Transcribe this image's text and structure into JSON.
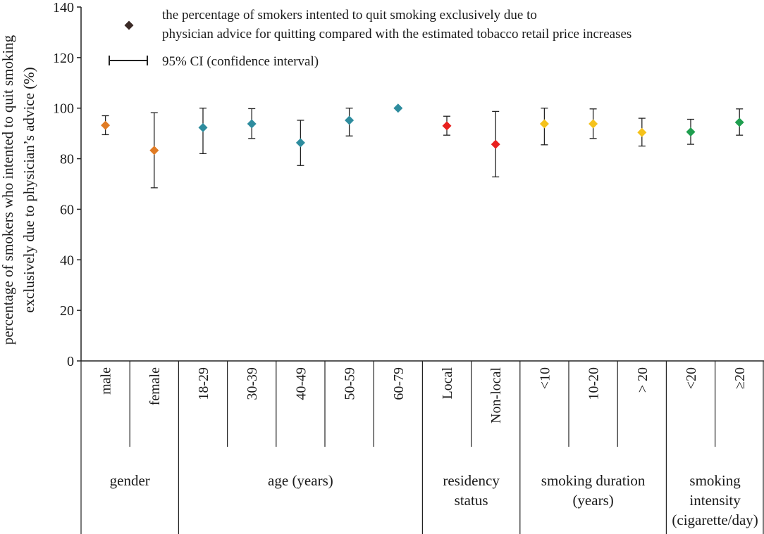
{
  "chart_data": {
    "type": "scatter",
    "ylabel_lines": [
      "percentage of smokers who intented to quit smoking",
      "exclusively due to physician’s advice (%)"
    ],
    "xlabel": "",
    "ylim": [
      0,
      140
    ],
    "yticks": [
      "0",
      "20",
      "40",
      "60",
      "80",
      "100",
      "120",
      "140"
    ],
    "legend": {
      "marker_label_lines": [
        "the percentage of smokers intented to quit smoking exclusively due to",
        "physician advice for quitting compared with the estimated tobacco retail price increases"
      ],
      "ci_label": "95% CI (confidence interval)",
      "marker_color": "#3a2a26"
    },
    "groups": [
      {
        "name_lines": [
          "gender"
        ],
        "span": 2
      },
      {
        "name_lines": [
          "age (years)"
        ],
        "span": 5
      },
      {
        "name_lines": [
          "residency",
          "status"
        ],
        "span": 2
      },
      {
        "name_lines": [
          "smoking duration",
          "(years)"
        ],
        "span": 3
      },
      {
        "name_lines": [
          "smoking",
          "intensity",
          "(cigarette/day)"
        ],
        "span": 2
      }
    ],
    "points": [
      {
        "category": "male",
        "value": 93.2,
        "ci": [
          89.5,
          97.0
        ],
        "color": "#e07b24"
      },
      {
        "category": "female",
        "value": 83.3,
        "ci": [
          68.5,
          98.2
        ],
        "color": "#e07b24"
      },
      {
        "category": "18-29",
        "value": 92.3,
        "ci": [
          82.0,
          100.0
        ],
        "color": "#2e8c9e"
      },
      {
        "category": "30-39",
        "value": 93.8,
        "ci": [
          88.0,
          99.8
        ],
        "color": "#2e8c9e"
      },
      {
        "category": "40-49",
        "value": 86.3,
        "ci": [
          77.3,
          95.2
        ],
        "color": "#2e8c9e"
      },
      {
        "category": "50-59",
        "value": 95.2,
        "ci": [
          89.0,
          100.0
        ],
        "color": "#2e8c9e"
      },
      {
        "category": "60-79",
        "value": 100.0,
        "ci": null,
        "color": "#2e8c9e"
      },
      {
        "category": "Local",
        "value": 93.0,
        "ci": [
          89.3,
          96.8
        ],
        "color": "#e8201e"
      },
      {
        "category": "Non-local",
        "value": 85.7,
        "ci": [
          72.8,
          98.7
        ],
        "color": "#e8201e"
      },
      {
        "category": "<10",
        "value": 93.8,
        "ci": [
          85.5,
          100.0
        ],
        "color": "#f5c21b"
      },
      {
        "category": "10-20",
        "value": 93.8,
        "ci": [
          88.0,
          99.7
        ],
        "color": "#f5c21b"
      },
      {
        "category": "> 20",
        "value": 90.4,
        "ci": [
          85.0,
          96.0
        ],
        "color": "#f5c21b"
      },
      {
        "category": "<20",
        "value": 90.6,
        "ci": [
          85.7,
          95.6
        ],
        "color": "#1f9e4f"
      },
      {
        "category": "≥20",
        "value": 94.4,
        "ci": [
          89.3,
          99.7
        ],
        "color": "#1f9e4f"
      }
    ]
  }
}
